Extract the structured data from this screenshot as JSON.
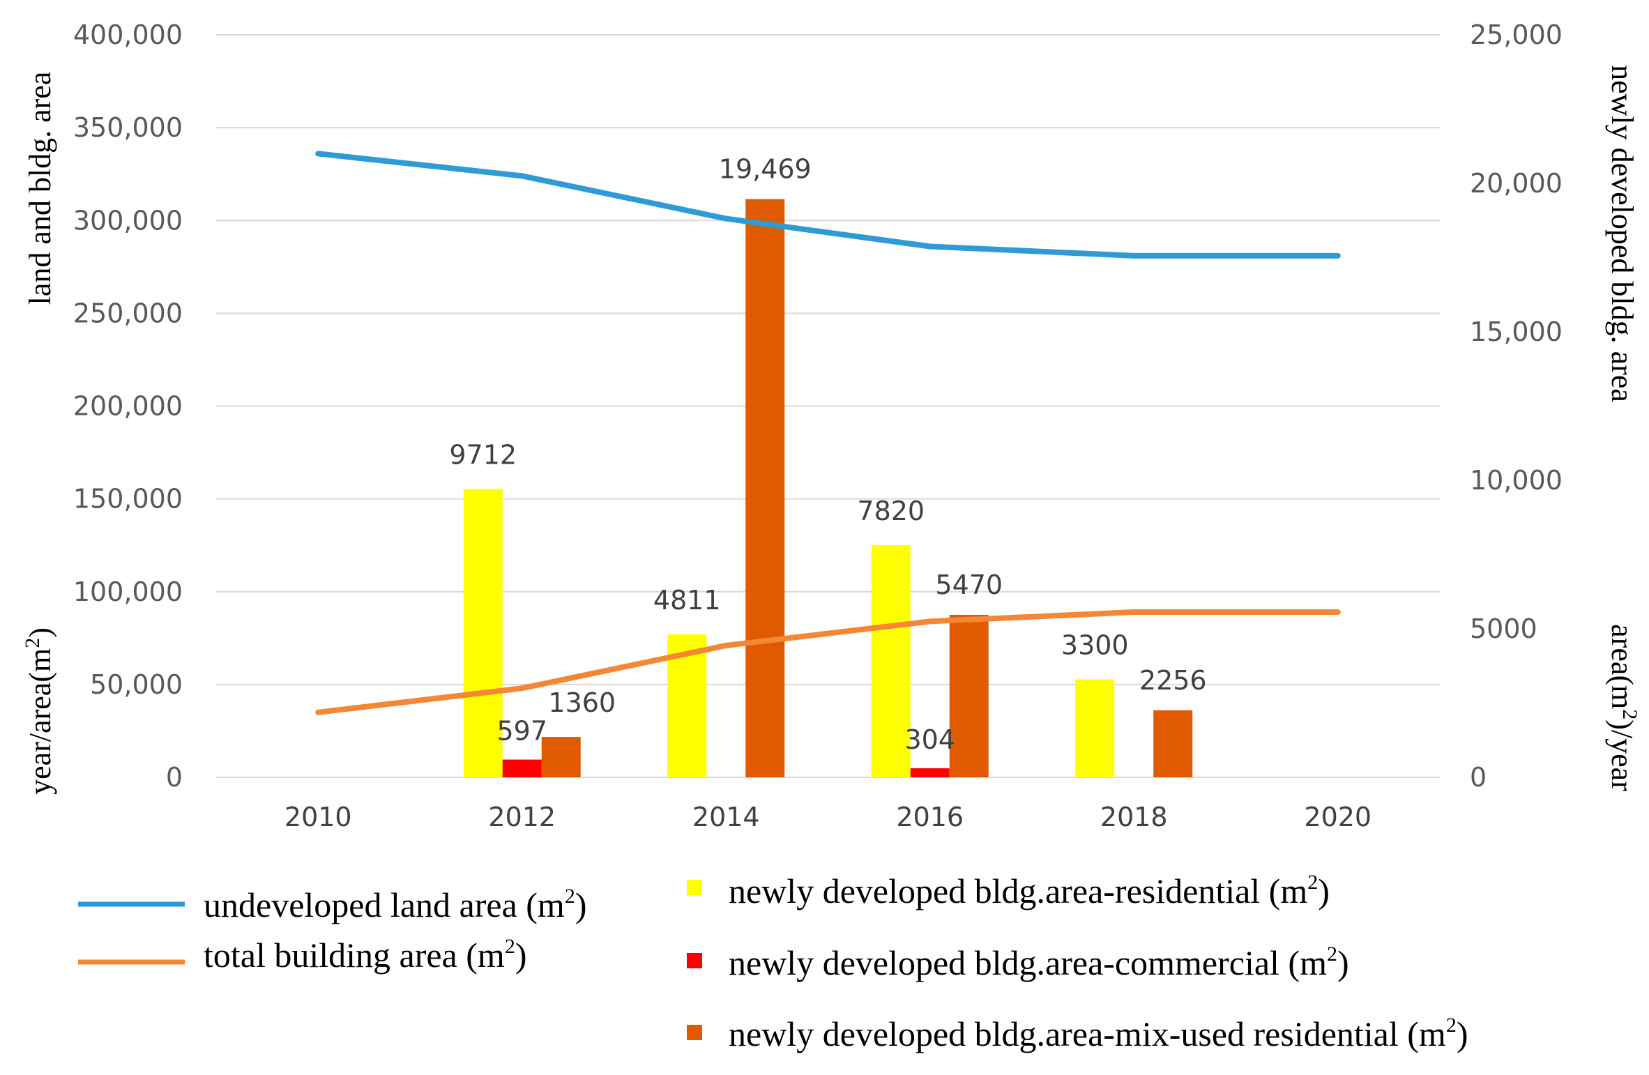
{
  "chart_data": {
    "type": "bar",
    "categories": [
      "2010",
      "2012",
      "2014",
      "2016",
      "2018",
      "2020"
    ],
    "left_axis": {
      "range": [
        0,
        400000
      ],
      "ticks": [
        0,
        50000,
        100000,
        150000,
        200000,
        250000,
        300000,
        350000,
        400000
      ],
      "tick_labels": [
        "0",
        "50,000",
        "100,000",
        "150,000",
        "200,000",
        "250,000",
        "300,000",
        "350,000",
        "400,000"
      ],
      "title_upper": "land and bldg. area",
      "title_lower": "year/area(m",
      "title_lower_sup": "2",
      "title_lower_end": ")"
    },
    "right_axis": {
      "range": [
        0,
        25000
      ],
      "ticks": [
        0,
        5000,
        10000,
        15000,
        20000,
        25000
      ],
      "tick_labels": [
        "0",
        "5000",
        "10,000",
        "15,000",
        "20,000",
        "25,000"
      ],
      "title_upper": "newly developed bldg. area",
      "title_lower": "area(m",
      "title_lower_sup": "2",
      "title_lower_end": ")/year"
    },
    "grid": true,
    "line_series": [
      {
        "name": "undeveloped land area (m",
        "name_sup": "2",
        "name_end": ")",
        "axis": "left",
        "color": "#2E9BD6",
        "values": [
          336000,
          324000,
          301000,
          286000,
          281000,
          281000
        ]
      },
      {
        "name": "total building area (m",
        "name_sup": "2",
        "name_end": ")",
        "axis": "left",
        "color": "#F58634",
        "values": [
          35000,
          48000,
          71000,
          84000,
          89000,
          89000
        ]
      }
    ],
    "bar_series": [
      {
        "name": "newly developed bldg.area-residential (m",
        "name_sup": "2",
        "name_end": ")",
        "axis": "right",
        "color": "#FFFF00",
        "values": [
          null,
          9712,
          4811,
          7820,
          3300,
          null
        ],
        "labels": [
          "",
          "9712",
          "4811",
          "7820",
          "3300",
          ""
        ]
      },
      {
        "name": "newly developed bldg.area-commercial (m",
        "name_sup": "2",
        "name_end": ")",
        "axis": "right",
        "color": "#FF0000",
        "values": [
          null,
          597,
          null,
          304,
          null,
          null
        ],
        "labels": [
          "",
          "597",
          "",
          "304",
          "",
          ""
        ]
      },
      {
        "name": "newly developed bldg.area-mix-used residential (m",
        "name_sup": "2",
        "name_end": ")",
        "axis": "right",
        "color": "#E05A00",
        "values": [
          null,
          1360,
          19469,
          5470,
          2256,
          null
        ],
        "labels": [
          "",
          "1360",
          "19,469",
          "5470",
          "2256",
          ""
        ]
      }
    ]
  }
}
